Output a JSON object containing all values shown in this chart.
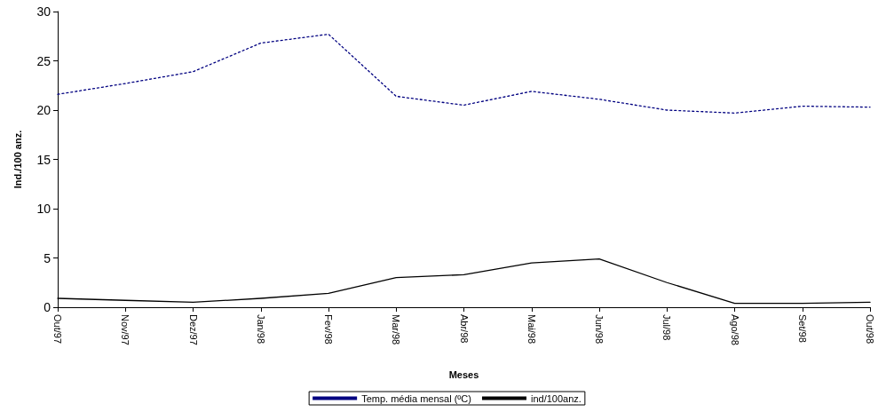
{
  "chart_data": {
    "type": "line",
    "xlabel": "Meses",
    "ylabel": "Ind./100 anz.",
    "categories": [
      "Out/97",
      "Nov/97",
      "Dez/97",
      "Jan/98",
      "Fev/98",
      "Mar/98",
      "Abr/98",
      "Mai/98",
      "Jun/98",
      "Jul/98",
      "Ago/98",
      "Set/98",
      "Out/98"
    ],
    "series": [
      {
        "name": "Temp. média mensal (ºC)",
        "color": "#000080",
        "line_style": "dotted",
        "values": [
          21.6,
          22.7,
          23.9,
          26.8,
          27.7,
          21.4,
          20.5,
          21.9,
          21.1,
          20.0,
          19.7,
          20.4,
          20.3
        ]
      },
      {
        "name": "ind/100anz.",
        "color": "#000000",
        "line_style": "solid",
        "values": [
          0.9,
          0.7,
          0.5,
          0.9,
          1.4,
          3.0,
          3.3,
          4.5,
          4.9,
          2.5,
          0.4,
          0.4,
          0.5
        ]
      }
    ],
    "ylim": [
      0,
      30
    ],
    "yticks": [
      0,
      5,
      10,
      15,
      20,
      25,
      30
    ],
    "grid": false,
    "legend": "bottom",
    "marker": "none"
  }
}
